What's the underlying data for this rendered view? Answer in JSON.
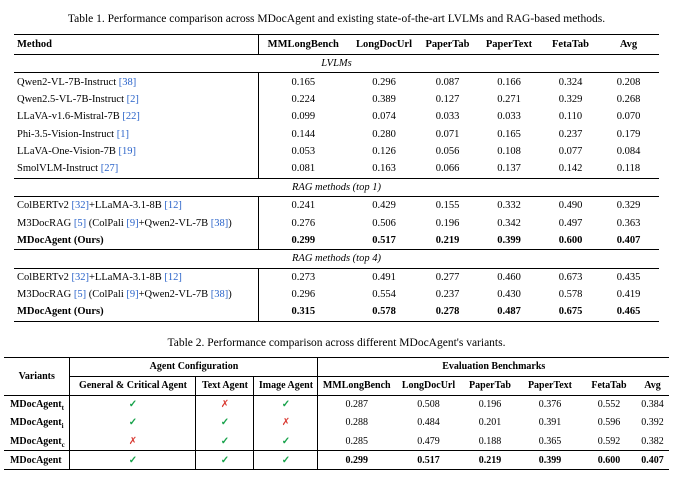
{
  "colors": {
    "citation": "#2a63c9",
    "check": "#18a24b",
    "cross": "#d93a32"
  },
  "table1": {
    "caption": "Table 1. Performance comparison across MDocAgent and existing state-of-the-art LVLMs and RAG-based methods.",
    "columns": [
      "Method",
      "MMLongBench",
      "LongDocUrl",
      "PaperTab",
      "PaperText",
      "FetaTab",
      "Avg"
    ],
    "sections": [
      {
        "label": "LVLMs",
        "rows": [
          {
            "method": [
              {
                "text": "Qwen2-VL-7B-Instruct "
              },
              {
                "text": "[38]",
                "cite": true
              }
            ],
            "values": [
              "0.165",
              "0.296",
              "0.087",
              "0.166",
              "0.324",
              "0.208"
            ]
          },
          {
            "method": [
              {
                "text": "Qwen2.5-VL-7B-Instruct "
              },
              {
                "text": "[2]",
                "cite": true
              }
            ],
            "values": [
              "0.224",
              "0.389",
              "0.127",
              "0.271",
              "0.329",
              "0.268"
            ]
          },
          {
            "method": [
              {
                "text": "LLaVA-v1.6-Mistral-7B "
              },
              {
                "text": "[22]",
                "cite": true
              }
            ],
            "values": [
              "0.099",
              "0.074",
              "0.033",
              "0.033",
              "0.110",
              "0.070"
            ]
          },
          {
            "method": [
              {
                "text": "Phi-3.5-Vision-Instruct "
              },
              {
                "text": "[1]",
                "cite": true
              }
            ],
            "values": [
              "0.144",
              "0.280",
              "0.071",
              "0.165",
              "0.237",
              "0.179"
            ]
          },
          {
            "method": [
              {
                "text": "LLaVA-One-Vision-7B "
              },
              {
                "text": "[19]",
                "cite": true
              }
            ],
            "values": [
              "0.053",
              "0.126",
              "0.056",
              "0.108",
              "0.077",
              "0.084"
            ]
          },
          {
            "method": [
              {
                "text": "SmolVLM-Instruct "
              },
              {
                "text": "[27]",
                "cite": true
              }
            ],
            "values": [
              "0.081",
              "0.163",
              "0.066",
              "0.137",
              "0.142",
              "0.118"
            ]
          }
        ]
      },
      {
        "label": "RAG methods (top 1)",
        "rows": [
          {
            "method": [
              {
                "text": "ColBERTv2 "
              },
              {
                "text": "[32]",
                "cite": true
              },
              {
                "text": "+LLaMA-3.1-8B "
              },
              {
                "text": "[12]",
                "cite": true
              }
            ],
            "values": [
              "0.241",
              "0.429",
              "0.155",
              "0.332",
              "0.490",
              "0.329"
            ]
          },
          {
            "method": [
              {
                "text": "M3DocRAG "
              },
              {
                "text": "[5]",
                "cite": true
              },
              {
                "text": " (ColPali "
              },
              {
                "text": "[9]",
                "cite": true
              },
              {
                "text": "+Qwen2-VL-7B "
              },
              {
                "text": "[38]",
                "cite": true
              },
              {
                "text": ")"
              }
            ],
            "values": [
              "0.276",
              "0.506",
              "0.196",
              "0.342",
              "0.497",
              "0.363"
            ]
          },
          {
            "method": [
              {
                "text": "MDocAgent (Ours)"
              }
            ],
            "bold": true,
            "values": [
              "0.299",
              "0.517",
              "0.219",
              "0.399",
              "0.600",
              "0.407"
            ]
          }
        ]
      },
      {
        "label": "RAG methods (top 4)",
        "rows": [
          {
            "method": [
              {
                "text": "ColBERTv2 "
              },
              {
                "text": "[32]",
                "cite": true
              },
              {
                "text": "+LLaMA-3.1-8B "
              },
              {
                "text": "[12]",
                "cite": true
              }
            ],
            "values": [
              "0.273",
              "0.491",
              "0.277",
              "0.460",
              "0.673",
              "0.435"
            ]
          },
          {
            "method": [
              {
                "text": "M3DocRAG "
              },
              {
                "text": "[5]",
                "cite": true
              },
              {
                "text": " (ColPali "
              },
              {
                "text": "[9]",
                "cite": true
              },
              {
                "text": "+Qwen2-VL-7B "
              },
              {
                "text": "[38]",
                "cite": true
              },
              {
                "text": ")"
              }
            ],
            "values": [
              "0.296",
              "0.554",
              "0.237",
              "0.430",
              "0.578",
              "0.419"
            ]
          },
          {
            "method": [
              {
                "text": "MDocAgent (Ours)"
              }
            ],
            "bold": true,
            "values": [
              "0.315",
              "0.578",
              "0.278",
              "0.487",
              "0.675",
              "0.465"
            ]
          }
        ]
      }
    ]
  },
  "table2": {
    "caption": "Table 2. Performance comparison across different MDocAgent's variants.",
    "variants_header": "Variants",
    "groups": [
      {
        "label": "Agent Configuration",
        "span": 3
      },
      {
        "label": "Evaluation Benchmarks",
        "span": 6
      }
    ],
    "subcolumns": [
      "General & Critical Agent",
      "Text Agent",
      "Image Agent",
      "MMLongBench",
      "LongDocUrl",
      "PaperTab",
      "PaperText",
      "FetaTab",
      "Avg"
    ],
    "check_glyph": "✓",
    "cross_glyph": "✗",
    "rows": [
      {
        "name": "MDocAgent",
        "sub": "t",
        "config": [
          true,
          false,
          true
        ],
        "values": [
          "0.287",
          "0.508",
          "0.196",
          "0.376",
          "0.552",
          "0.384"
        ]
      },
      {
        "name": "MDocAgent",
        "sub": "i",
        "config": [
          true,
          true,
          false
        ],
        "values": [
          "0.288",
          "0.484",
          "0.201",
          "0.391",
          "0.596",
          "0.392"
        ]
      },
      {
        "name": "MDocAgent",
        "sub": "c",
        "config": [
          false,
          true,
          true
        ],
        "values": [
          "0.285",
          "0.479",
          "0.188",
          "0.365",
          "0.592",
          "0.382"
        ]
      },
      {
        "name": "MDocAgent",
        "sub": "",
        "final": true,
        "config": [
          true,
          true,
          true
        ],
        "values": [
          "0.299",
          "0.517",
          "0.219",
          "0.399",
          "0.600",
          "0.407"
        ]
      }
    ]
  }
}
